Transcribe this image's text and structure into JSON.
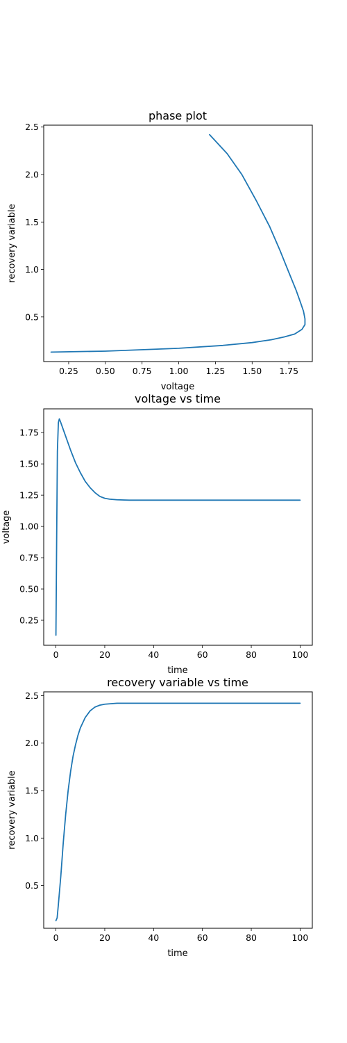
{
  "colors": {
    "series": "#1f77b4",
    "axes": "#000000",
    "background": "#ffffff"
  },
  "chart_data": [
    {
      "type": "line",
      "title": "phase plot",
      "xlabel": "voltage",
      "ylabel": "recovery variable",
      "xlim": [
        0.08,
        1.91
      ],
      "ylim": [
        0.03,
        2.52
      ],
      "xticks": [
        0.25,
        0.5,
        0.75,
        1.0,
        1.25,
        1.5,
        1.75
      ],
      "xtick_labels": [
        "0.25",
        "0.50",
        "0.75",
        "1.00",
        "1.25",
        "1.50",
        "1.75"
      ],
      "yticks": [
        0.5,
        1.0,
        1.5,
        2.0,
        2.5
      ],
      "ytick_labels": [
        "0.5",
        "1.0",
        "1.5",
        "2.0",
        "2.5"
      ],
      "grid": false,
      "series": [
        {
          "x": [
            0.13,
            0.5,
            1.0,
            1.3,
            1.5,
            1.63,
            1.72,
            1.79,
            1.84,
            1.86,
            1.86,
            1.85,
            1.83,
            1.8,
            1.75,
            1.69,
            1.62,
            1.53,
            1.43,
            1.33,
            1.21
          ],
          "y": [
            0.13,
            0.14,
            0.17,
            0.2,
            0.23,
            0.26,
            0.29,
            0.32,
            0.37,
            0.42,
            0.48,
            0.56,
            0.65,
            0.78,
            0.97,
            1.2,
            1.45,
            1.72,
            2.0,
            2.22,
            2.42
          ]
        }
      ]
    },
    {
      "type": "line",
      "title": "voltage vs time",
      "xlabel": "time",
      "ylabel": "voltage",
      "xlim": [
        -5,
        105
      ],
      "ylim": [
        0.05,
        1.94
      ],
      "xticks": [
        0,
        20,
        40,
        60,
        80,
        100
      ],
      "xtick_labels": [
        "0",
        "20",
        "40",
        "60",
        "80",
        "100"
      ],
      "yticks": [
        0.25,
        0.5,
        0.75,
        1.0,
        1.25,
        1.5,
        1.75
      ],
      "ytick_labels": [
        "0.25",
        "0.50",
        "0.75",
        "1.00",
        "1.25",
        "1.50",
        "1.75"
      ],
      "grid": false,
      "series": [
        {
          "x": [
            0,
            0.3,
            0.6,
            1.0,
            1.4,
            2,
            4,
            6,
            8,
            10,
            12,
            14,
            16,
            18,
            20,
            22,
            25,
            30,
            40,
            60,
            80,
            100
          ],
          "y": [
            0.13,
            0.9,
            1.6,
            1.83,
            1.86,
            1.83,
            1.72,
            1.61,
            1.51,
            1.43,
            1.36,
            1.31,
            1.27,
            1.24,
            1.225,
            1.218,
            1.213,
            1.21,
            1.21,
            1.21,
            1.21,
            1.21
          ]
        }
      ]
    },
    {
      "type": "line",
      "title": "recovery variable vs time",
      "xlabel": "time",
      "ylabel": "recovery variable",
      "xlim": [
        -5,
        105
      ],
      "ylim": [
        0.05,
        2.54
      ],
      "xticks": [
        0,
        20,
        40,
        60,
        80,
        100
      ],
      "xtick_labels": [
        "0",
        "20",
        "40",
        "60",
        "80",
        "100"
      ],
      "yticks": [
        0.5,
        1.0,
        1.5,
        2.0,
        2.5
      ],
      "ytick_labels": [
        "0.5",
        "1.0",
        "1.5",
        "2.0",
        "2.5"
      ],
      "grid": false,
      "series": [
        {
          "x": [
            0,
            0.5,
            1,
            2,
            3,
            4,
            5,
            6,
            7,
            8,
            9,
            10,
            12,
            14,
            16,
            18,
            20,
            25,
            30,
            40,
            60,
            80,
            100
          ],
          "y": [
            0.13,
            0.16,
            0.3,
            0.6,
            0.95,
            1.25,
            1.5,
            1.7,
            1.86,
            1.98,
            2.08,
            2.16,
            2.27,
            2.34,
            2.38,
            2.4,
            2.41,
            2.42,
            2.42,
            2.42,
            2.42,
            2.42,
            2.42
          ]
        }
      ]
    }
  ]
}
